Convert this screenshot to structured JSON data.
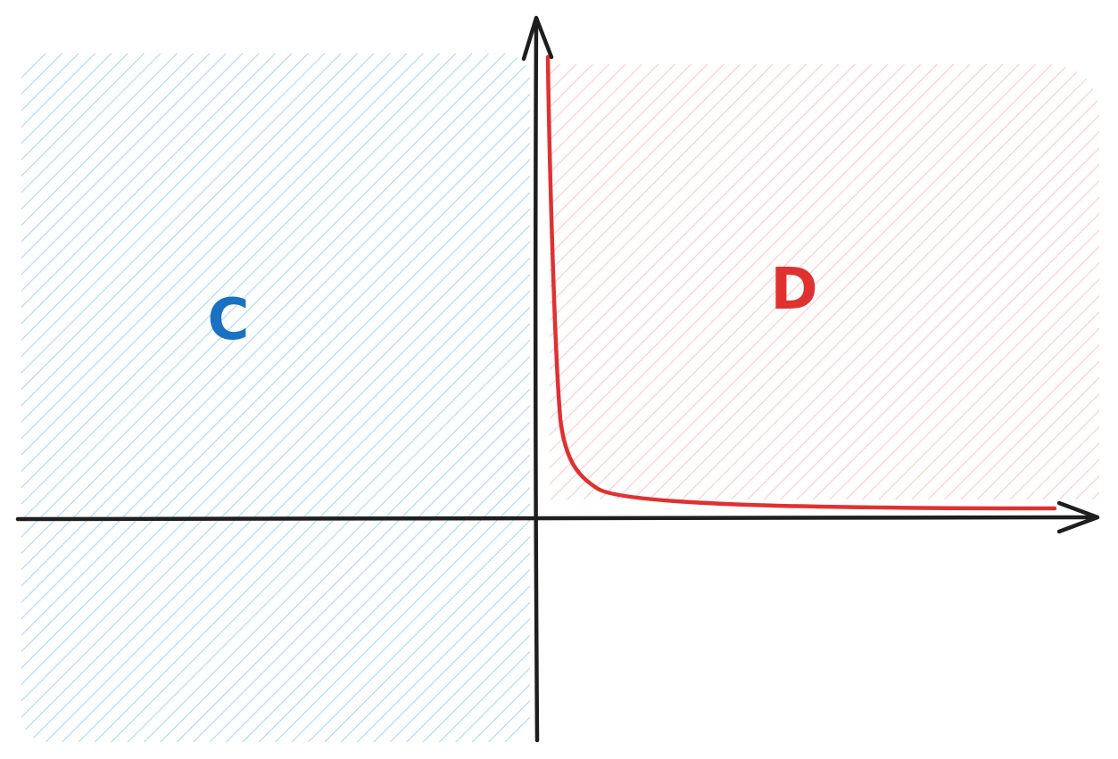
{
  "regions": [
    {
      "id": "c",
      "label": "C",
      "color": "#1971c2",
      "hatch_color": "#a5d8ff"
    },
    {
      "id": "d",
      "label": "D",
      "color": "#e03131",
      "hatch_color": "#ffc9c9"
    }
  ],
  "axes": {
    "color": "#1e1e1e",
    "x_arrow": true,
    "y_arrow": true
  },
  "curve": {
    "color": "#e03131",
    "shape": "hyperbola"
  }
}
